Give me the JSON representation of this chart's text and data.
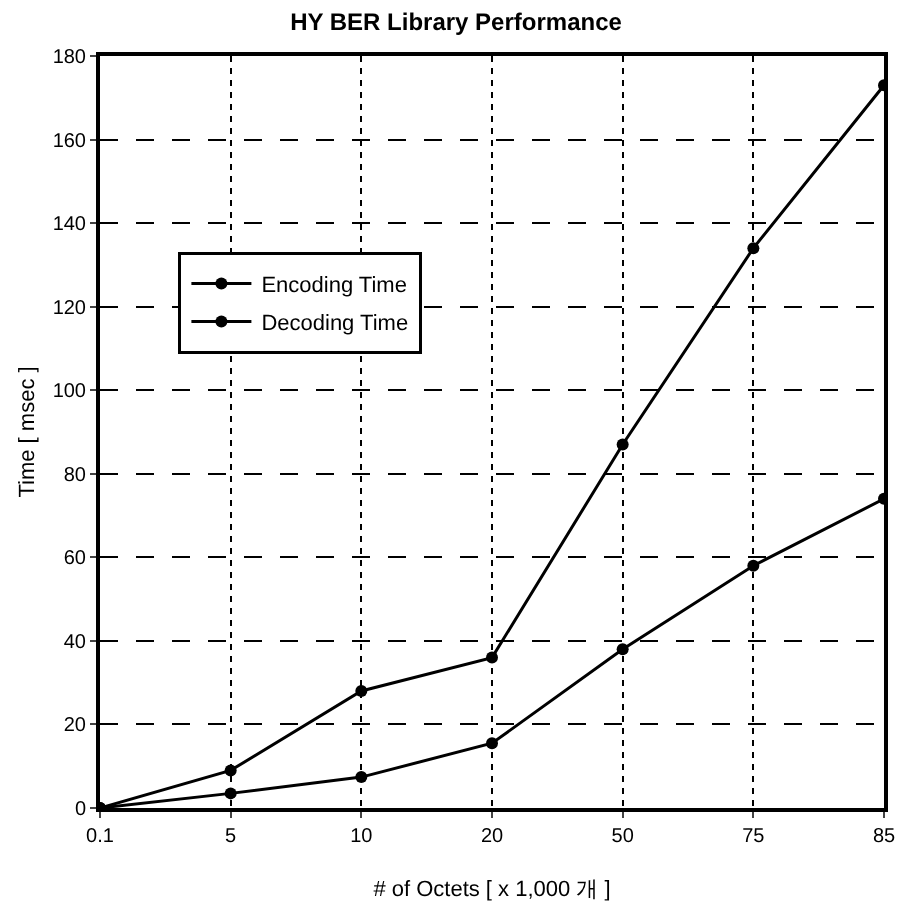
{
  "chart_data": {
    "type": "line",
    "title": "HY BER Library Performance",
    "xlabel": "# of Octets [ x 1,000 개 ]",
    "ylabel": "Time [ msec ]",
    "categories": [
      "0.1",
      "5",
      "10",
      "20",
      "50",
      "75",
      "85"
    ],
    "series": [
      {
        "name": "Encoding Time",
        "color": "#000000",
        "values": [
          0,
          9,
          28,
          36,
          87,
          134,
          173
        ]
      },
      {
        "name": "Decoding Time",
        "color": "#000000",
        "values": [
          0,
          3.5,
          7.4,
          15.5,
          38,
          58,
          74
        ]
      }
    ],
    "ylim": [
      0,
      180
    ],
    "yticks": [
      0,
      20,
      40,
      60,
      80,
      100,
      120,
      140,
      160,
      180
    ],
    "grid": true,
    "legend": "top left",
    "marker": "circle",
    "line_style": "solid"
  }
}
